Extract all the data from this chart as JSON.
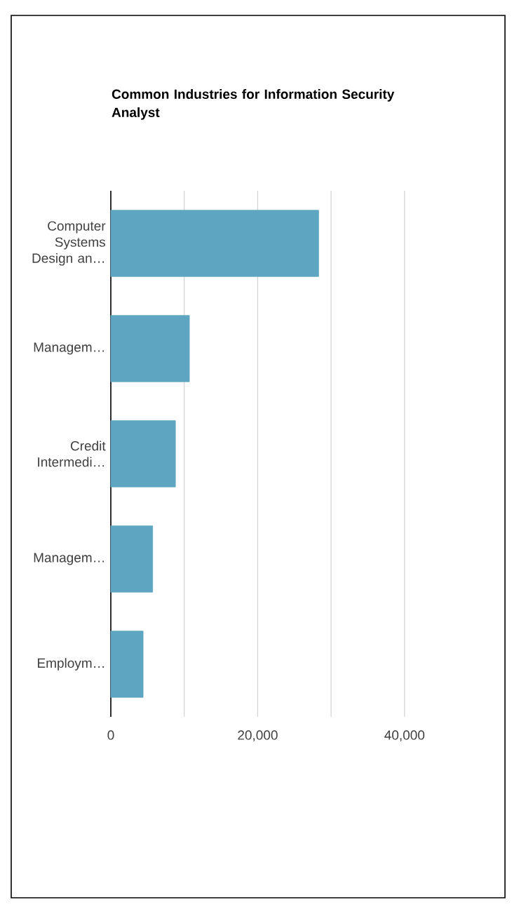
{
  "chart_data": {
    "type": "bar",
    "orientation": "horizontal",
    "title": "Common Industries for Information Security Analyst",
    "categories": [
      "Computer Systems Design an…",
      "Managem…",
      "Credit Intermedi…",
      "Managem…",
      "Employm…"
    ],
    "values": [
      28300,
      10700,
      8800,
      5700,
      4400
    ],
    "color": "#5ea5c2",
    "xlim": [
      0,
      40000
    ],
    "xticks": [
      0,
      {
        "value": 10000,
        "label": null
      },
      {
        "value": 20000,
        "label": "20,000"
      },
      {
        "value": 30000,
        "label": null
      },
      {
        "value": 40000,
        "label": "40,000"
      }
    ],
    "grid": "x"
  }
}
